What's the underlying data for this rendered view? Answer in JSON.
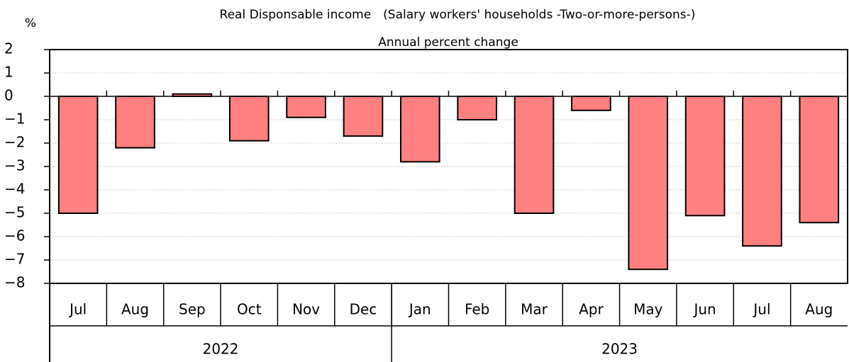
{
  "chart_data": {
    "type": "bar",
    "title": "Real Disponsable income　(Salary workers' households -Two-or-more-persons-)",
    "subtitle": "Annual percent change",
    "y_axis_label": "%",
    "categories": [
      "Jul",
      "Aug",
      "Sep",
      "Oct",
      "Nov",
      "Dec",
      "Jan",
      "Feb",
      "Mar",
      "Apr",
      "May",
      "Jun",
      "Jul",
      "Aug"
    ],
    "groups": [
      {
        "label": "2022",
        "count": 6
      },
      {
        "label": "2023",
        "count": 8
      }
    ],
    "values": [
      -5.0,
      -2.2,
      0.1,
      -1.9,
      -0.9,
      -1.7,
      -2.8,
      -1.0,
      -5.0,
      -0.6,
      -7.4,
      -5.1,
      -6.4,
      -5.4
    ],
    "color": "#ff8080",
    "ylim": [
      -8,
      2
    ],
    "yticks": [
      2,
      1,
      0,
      {
        "value": -1,
        "label": "−1"
      },
      {
        "value": -2,
        "label": "−2"
      },
      {
        "value": -3,
        "label": "−3"
      },
      {
        "value": -4,
        "label": "−4"
      },
      {
        "value": -5,
        "label": "−5"
      },
      {
        "value": -6,
        "label": "−6"
      },
      {
        "value": -7,
        "label": "−7"
      },
      {
        "value": -8,
        "label": "−8"
      }
    ],
    "grid": true
  }
}
